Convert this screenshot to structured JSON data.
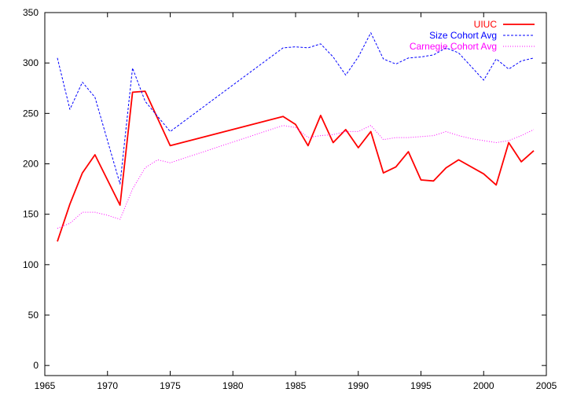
{
  "chart_data": {
    "type": "line",
    "title": "",
    "xlabel": "",
    "ylabel": "",
    "xlim": [
      1965,
      2005
    ],
    "ylim": [
      -10,
      350
    ],
    "x_ticks": [
      1965,
      1970,
      1975,
      1980,
      1985,
      1990,
      1995,
      2000,
      2005
    ],
    "y_ticks": [
      0,
      50,
      100,
      150,
      200,
      250,
      300,
      350
    ],
    "grid": false,
    "legend_position": "top-right",
    "series": [
      {
        "name": "UIUC",
        "color": "#ff0000",
        "style": "solid",
        "x": [
          1966,
          1967,
          1968,
          1969,
          1971,
          1972,
          1973,
          1975,
          1984,
          1985,
          1986,
          1987,
          1988,
          1989,
          1990,
          1991,
          1992,
          1993,
          1994,
          1995,
          1996,
          1997,
          1998,
          2000,
          2001,
          2002,
          2003,
          2004
        ],
        "values": [
          123,
          160,
          191,
          209,
          159,
          271,
          272,
          218,
          247,
          239,
          218,
          248,
          221,
          234,
          216,
          232,
          191,
          197,
          212,
          184,
          183,
          196,
          204,
          190,
          179,
          221,
          202,
          213
        ]
      },
      {
        "name": "Size Cohort Avg",
        "color": "#0000ff",
        "style": "dashed",
        "x": [
          1966,
          1967,
          1968,
          1969,
          1971,
          1972,
          1973,
          1975,
          1984,
          1985,
          1986,
          1987,
          1988,
          1989,
          1990,
          1991,
          1992,
          1993,
          1994,
          1995,
          1996,
          1997,
          1998,
          2000,
          2001,
          2002,
          2003,
          2004
        ],
        "values": [
          305,
          254,
          281,
          266,
          180,
          295,
          262,
          232,
          315,
          316,
          315,
          319,
          306,
          288,
          306,
          330,
          304,
          299,
          305,
          306,
          308,
          315,
          310,
          283,
          304,
          294,
          302,
          305
        ]
      },
      {
        "name": "Carnegie Cohort Avg",
        "color": "#ff00ff",
        "style": "dotted",
        "x": [
          1966,
          1967,
          1968,
          1969,
          1970,
          1971,
          1972,
          1973,
          1974,
          1975,
          1984,
          1985,
          1986,
          1987,
          1988,
          1989,
          1990,
          1991,
          1992,
          1993,
          1994,
          1995,
          1996,
          1997,
          1998,
          1999,
          2000,
          2001,
          2002,
          2003,
          2004
        ],
        "values": [
          136,
          141,
          152,
          152,
          149,
          145,
          175,
          196,
          204,
          201,
          238,
          236,
          226,
          228,
          229,
          232,
          232,
          238,
          224,
          226,
          226,
          227,
          228,
          232,
          228,
          225,
          223,
          221,
          223,
          228,
          234
        ]
      }
    ]
  }
}
